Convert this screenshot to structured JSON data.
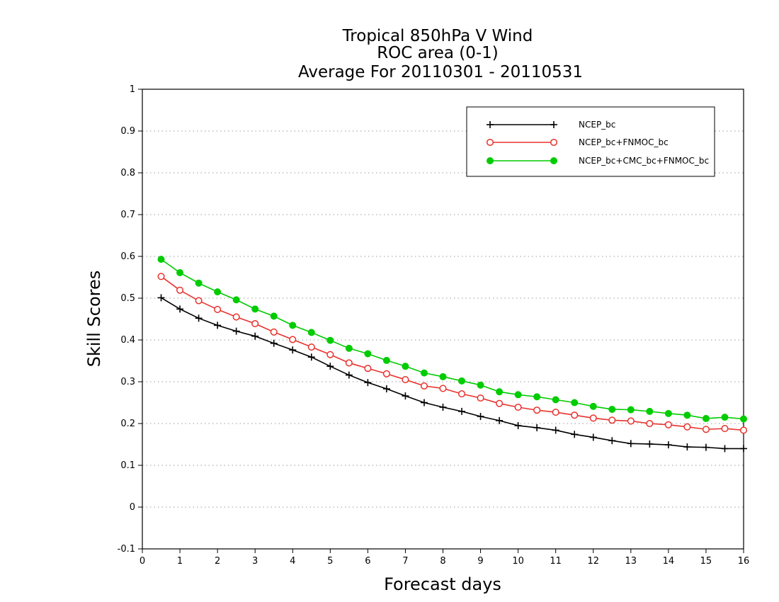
{
  "chart_data": {
    "type": "line",
    "title": [
      "Tropical 850hPa V Wind",
      "ROC area (0-1)",
      "Average For 20110301 - 20110531"
    ],
    "xlabel": "Forecast days",
    "ylabel": "Skill Scores",
    "xlim": [
      0,
      16
    ],
    "ylim": [
      -0.1,
      1
    ],
    "xticks": [
      0,
      1,
      2,
      3,
      4,
      5,
      6,
      7,
      8,
      9,
      10,
      11,
      12,
      13,
      14,
      15,
      16
    ],
    "yticks": [
      -0.1,
      0,
      0.1,
      0.2,
      0.3,
      0.4,
      0.5,
      0.6,
      0.7,
      0.8,
      0.9,
      1
    ],
    "ytick_labels": [
      "-0.1",
      "0",
      "0.1",
      "0.2",
      "0.3",
      "0.4",
      "0.5",
      "0.6",
      "0.7",
      "0.8",
      "0.9",
      "1"
    ],
    "grid": "horizontal dotted",
    "legend_position": "top-right",
    "x": [
      0.5,
      1,
      1.5,
      2,
      2.5,
      3,
      3.5,
      4,
      4.5,
      5,
      5.5,
      6,
      6.5,
      7,
      7.5,
      8,
      8.5,
      9,
      9.5,
      10,
      10.5,
      11,
      11.5,
      12,
      12.5,
      13,
      13.5,
      14,
      14.5,
      15,
      15.5,
      16
    ],
    "series": [
      {
        "name": "NCEP_bc",
        "color": "#000000",
        "marker": "plus",
        "values": [
          0.501,
          0.474,
          0.452,
          0.435,
          0.421,
          0.409,
          0.392,
          0.376,
          0.359,
          0.337,
          0.316,
          0.298,
          0.283,
          0.266,
          0.25,
          0.239,
          0.229,
          0.217,
          0.207,
          0.195,
          0.19,
          0.184,
          0.174,
          0.167,
          0.159,
          0.152,
          0.151,
          0.149,
          0.144,
          0.143,
          0.14,
          0.14
        ]
      },
      {
        "name": "NCEP_bc+FNMOC_bc",
        "color": "#e8322d",
        "marker": "open-circle",
        "values": [
          0.552,
          0.519,
          0.494,
          0.473,
          0.455,
          0.439,
          0.419,
          0.401,
          0.383,
          0.365,
          0.345,
          0.332,
          0.319,
          0.305,
          0.29,
          0.284,
          0.271,
          0.261,
          0.248,
          0.239,
          0.232,
          0.227,
          0.22,
          0.213,
          0.208,
          0.206,
          0.2,
          0.197,
          0.192,
          0.186,
          0.188,
          0.184
        ]
      },
      {
        "name": "NCEP_bc+CMC_bc+FNMOC_bc",
        "color": "#00cc00",
        "marker": "filled-circle",
        "values": [
          0.593,
          0.561,
          0.536,
          0.515,
          0.496,
          0.474,
          0.457,
          0.435,
          0.418,
          0.399,
          0.38,
          0.367,
          0.351,
          0.337,
          0.321,
          0.312,
          0.302,
          0.292,
          0.276,
          0.269,
          0.264,
          0.257,
          0.25,
          0.241,
          0.234,
          0.233,
          0.229,
          0.224,
          0.22,
          0.212,
          0.215,
          0.211
        ]
      }
    ]
  }
}
